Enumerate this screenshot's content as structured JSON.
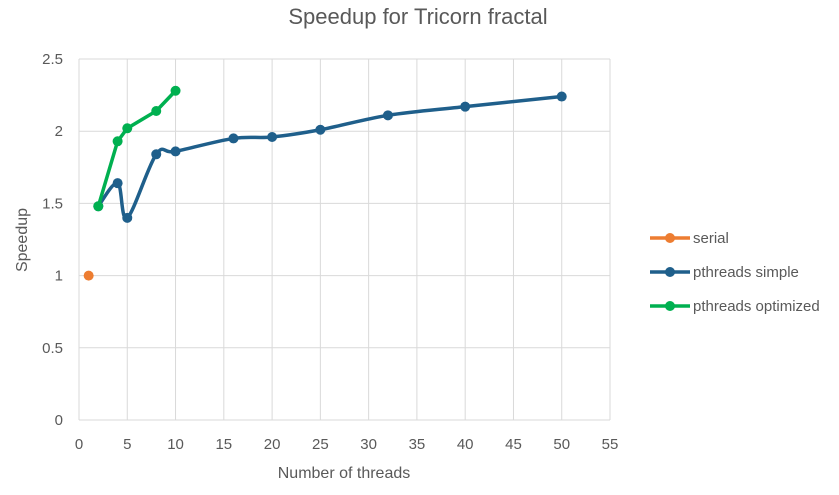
{
  "chart_data": {
    "type": "line",
    "title": "Speedup for Tricorn fractal",
    "xlabel": "Number of threads",
    "ylabel": "Speedup",
    "xlim": [
      0,
      55
    ],
    "ylim": [
      0,
      2.5
    ],
    "x_ticks": [
      0,
      5,
      10,
      15,
      20,
      25,
      30,
      35,
      40,
      45,
      50,
      55
    ],
    "y_ticks": [
      0,
      0.5,
      1,
      1.5,
      2,
      2.5
    ],
    "grid": true,
    "legend_position": "right",
    "series": [
      {
        "name": "serial",
        "color": "#ed7d31",
        "smooth": false,
        "x": [
          1
        ],
        "y": [
          1.0
        ]
      },
      {
        "name": "pthreads simple",
        "color": "#1f5f8b",
        "smooth": true,
        "x": [
          2,
          4,
          5,
          8,
          10,
          16,
          20,
          25,
          32,
          40,
          50
        ],
        "y": [
          1.48,
          1.64,
          1.4,
          1.84,
          1.86,
          1.95,
          1.96,
          2.01,
          2.11,
          2.17,
          2.24
        ]
      },
      {
        "name": "pthreads optimized",
        "color": "#00b050",
        "smooth": false,
        "x": [
          2,
          4,
          5,
          8,
          10
        ],
        "y": [
          1.48,
          1.93,
          2.02,
          2.14,
          2.28
        ]
      }
    ]
  }
}
